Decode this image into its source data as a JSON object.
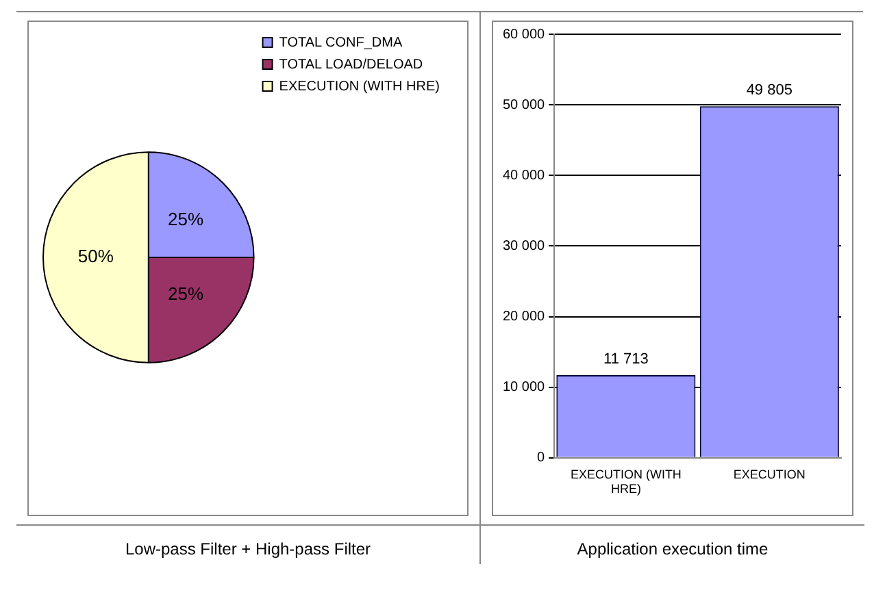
{
  "chart_data": [
    {
      "type": "pie",
      "title": "Low-pass Filter + High-pass Filter",
      "categories": [
        "TOTAL CONF_DMA",
        "TOTAL LOAD/DELOAD",
        "EXECUTION (WITH HRE)"
      ],
      "values": [
        25,
        25,
        50
      ],
      "colors": [
        "#9999ff",
        "#993366",
        "#ffffcc"
      ],
      "value_labels": [
        "25%",
        "25%",
        "50%"
      ],
      "legend": "top right"
    },
    {
      "type": "bar",
      "title": "Application execution time",
      "categories": [
        "EXECUTION (WITH HRE)",
        "EXECUTION"
      ],
      "values": [
        11713,
        49805
      ],
      "color": "#9999ff",
      "value_labels": [
        "11 713",
        "49 805"
      ],
      "ylim": [
        0,
        60000
      ],
      "yticks": [
        0,
        {
          "value": 10000,
          "label": "10 000"
        },
        {
          "value": 20000,
          "label": "20 000"
        },
        {
          "value": 30000,
          "label": "30 000"
        },
        {
          "value": 40000,
          "label": "40 000"
        },
        {
          "value": 50000,
          "label": "50 000"
        },
        {
          "value": 60000,
          "label": "60 000"
        }
      ],
      "grid": "y",
      "legend": false
    }
  ]
}
